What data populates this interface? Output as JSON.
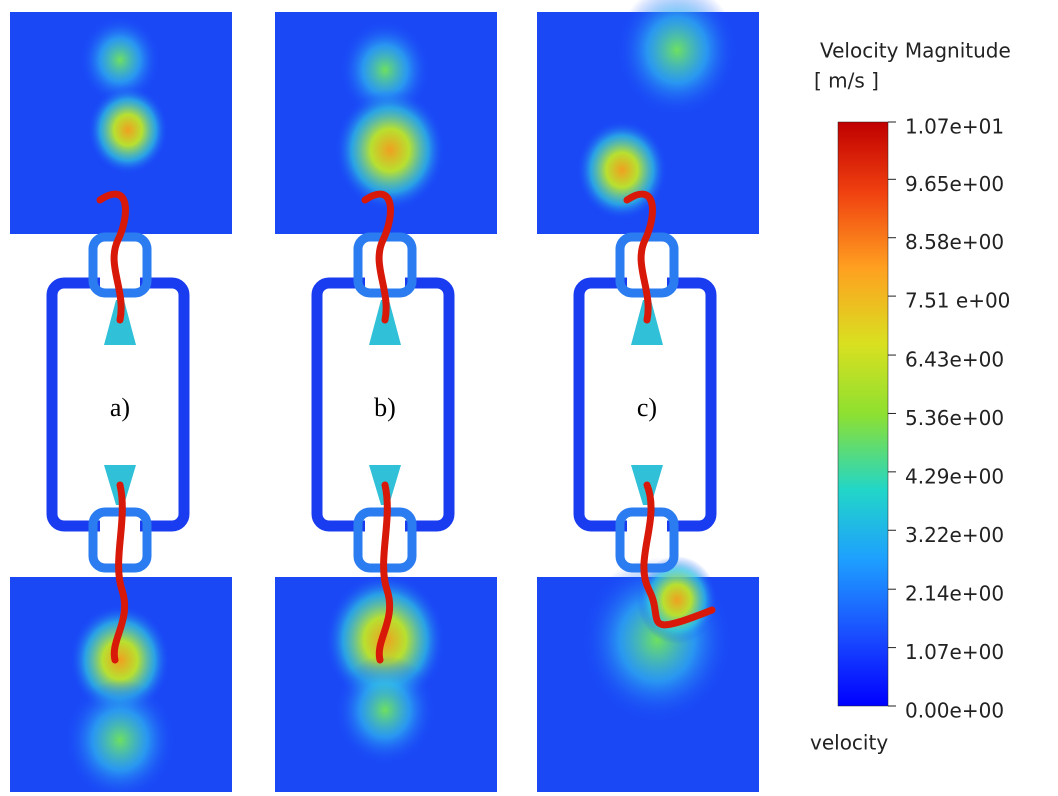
{
  "panels": [
    {
      "label": "a)"
    },
    {
      "label": "b)"
    },
    {
      "label": "c)"
    }
  ],
  "legend": {
    "title": "Velocity Magnitude",
    "unit": "[ m/s ]",
    "variable": "velocity",
    "range": [
      0,
      10.7
    ],
    "ticks": [
      {
        "value": 10.7,
        "label": "1.07e+01"
      },
      {
        "value": 9.65,
        "label": "9.65e+00"
      },
      {
        "value": 8.58,
        "label": "8.58e+00"
      },
      {
        "value": 7.51,
        "label": "7.51 e+00"
      },
      {
        "value": 6.43,
        "label": "6.43e+00"
      },
      {
        "value": 5.36,
        "label": "5.36e+00"
      },
      {
        "value": 4.29,
        "label": "4.29e+00"
      },
      {
        "value": 3.22,
        "label": "3.22e+00"
      },
      {
        "value": 2.14,
        "label": "2.14e+00"
      },
      {
        "value": 1.07,
        "label": "1.07e+00"
      },
      {
        "value": 0,
        "label": "0.00e+00"
      }
    ]
  }
}
